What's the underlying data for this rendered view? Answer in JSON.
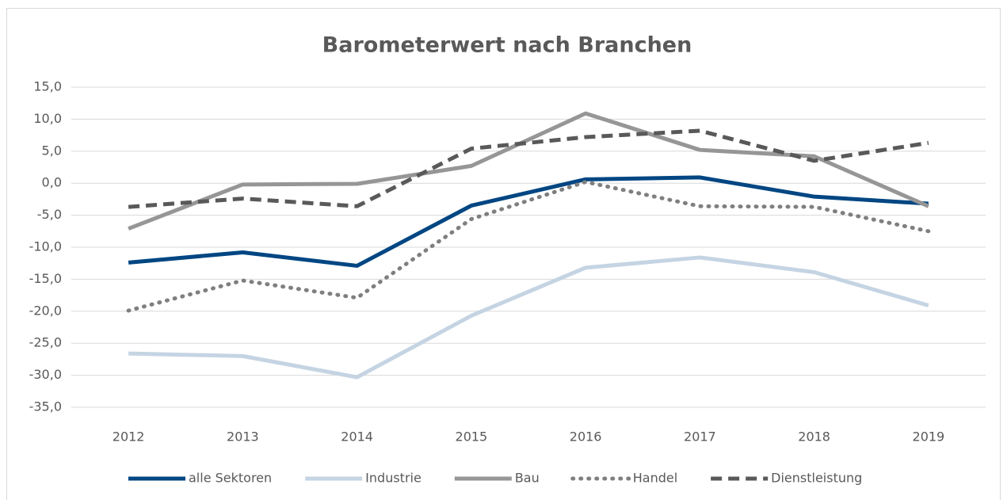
{
  "chart_data": {
    "type": "line",
    "title": "Barometerwert nach Branchen",
    "categories": [
      "2012",
      "2013",
      "2014",
      "2015",
      "2016",
      "2017",
      "2018",
      "2019"
    ],
    "series": [
      {
        "name": "alle Sektoren",
        "color": "#004682",
        "dash": "solid",
        "values": [
          -12.4,
          -10.8,
          -12.9,
          -3.5,
          0.6,
          0.9,
          -2.1,
          -3.2
        ]
      },
      {
        "name": "Industrie",
        "color": "#c5d4e3",
        "dash": "solid",
        "values": [
          -26.6,
          -27.0,
          -30.3,
          -20.7,
          -13.2,
          -11.6,
          -13.9,
          -19.1
        ]
      },
      {
        "name": "Bau",
        "color": "#969696",
        "dash": "solid",
        "values": [
          -7.1,
          -0.2,
          -0.1,
          2.7,
          10.9,
          5.2,
          4.2,
          -3.6
        ]
      },
      {
        "name": "Handel",
        "color": "#7f7f7f",
        "dash": "dotted",
        "values": [
          -19.9,
          -15.2,
          -17.9,
          -5.6,
          0.2,
          -3.6,
          -3.7,
          -7.5
        ]
      },
      {
        "name": "Dienstleistung",
        "color": "#595959",
        "dash": "dashed",
        "values": [
          -3.7,
          -2.4,
          -3.6,
          5.4,
          7.2,
          8.2,
          3.5,
          6.3
        ]
      }
    ],
    "ylim": [
      -35,
      15
    ],
    "yticks": [
      {
        "value": -35,
        "label": "-35,0"
      },
      {
        "value": -30,
        "label": "-30,0"
      },
      {
        "value": -25,
        "label": "-25,0"
      },
      {
        "value": -20,
        "label": "-20,0"
      },
      {
        "value": -15,
        "label": "-15,0"
      },
      {
        "value": -10,
        "label": "-10,0"
      },
      {
        "value": -5,
        "label": "-5,0"
      },
      {
        "value": 0,
        "label": "0,0"
      },
      {
        "value": 5,
        "label": "5,0"
      },
      {
        "value": 10,
        "label": "10,0"
      },
      {
        "value": 15,
        "label": "15,0"
      }
    ],
    "grid": true,
    "legend": "bottom"
  }
}
